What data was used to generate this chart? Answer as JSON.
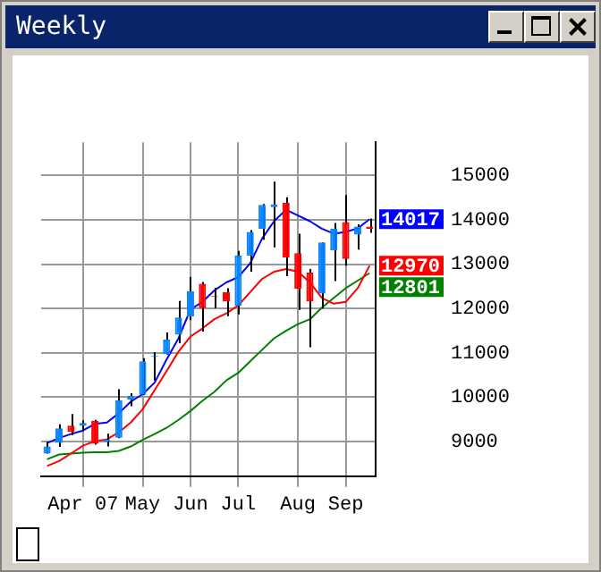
{
  "chart_data": {
    "type": "candlestick",
    "title": "Weekly",
    "categories": [
      null,
      null,
      null,
      "Apr 07",
      null,
      null,
      null,
      null,
      "May",
      null,
      null,
      null,
      "Jun",
      null,
      null,
      null,
      "Jul",
      null,
      null,
      null,
      null,
      "Aug",
      null,
      null,
      null,
      "Sep",
      null,
      null
    ],
    "ohlc": [
      [
        8730,
        8990,
        8730,
        8890
      ],
      [
        8970,
        9390,
        8880,
        9300
      ],
      [
        9360,
        9620,
        9150,
        9220
      ],
      [
        9360,
        9480,
        9240,
        9420
      ],
      [
        9470,
        9490,
        8930,
        8950
      ],
      [
        8990,
        9180,
        8890,
        9040
      ],
      [
        9090,
        10180,
        9080,
        9930
      ],
      [
        9950,
        10090,
        9800,
        10030
      ],
      [
        10060,
        10880,
        10050,
        10810
      ],
      [
        10920,
        11020,
        10380,
        10940
      ],
      [
        10970,
        11460,
        10960,
        11300
      ],
      [
        11410,
        12170,
        11220,
        11800
      ],
      [
        11820,
        12710,
        11740,
        12390
      ],
      [
        12560,
        12600,
        11480,
        12010
      ],
      [
        12280,
        12470,
        12010,
        12260
      ],
      [
        12370,
        12460,
        11830,
        12160
      ],
      [
        12060,
        13300,
        11870,
        13200
      ],
      [
        13190,
        13770,
        12830,
        13730
      ],
      [
        13800,
        14360,
        13550,
        14340
      ],
      [
        14290,
        14860,
        13380,
        14350
      ],
      [
        14390,
        14510,
        12730,
        13150
      ],
      [
        13250,
        13690,
        11970,
        12450
      ],
      [
        12810,
        12890,
        11130,
        12160
      ],
      [
        12340,
        13490,
        12000,
        13490
      ],
      [
        13310,
        13930,
        12620,
        13800
      ],
      [
        13950,
        14560,
        12970,
        13120
      ],
      [
        13670,
        13900,
        13330,
        13850
      ],
      [
        13850,
        14030,
        13710,
        13800
      ]
    ],
    "colors": [
      "#0a84ff",
      "#0a84ff",
      "#ff0000",
      "#0a84ff",
      "#ff0000",
      "#0a84ff",
      "#0a84ff",
      "#0a84ff",
      "#0a84ff",
      "#0a84ff",
      "#0a84ff",
      "#0a84ff",
      "#0a84ff",
      "#ff0000",
      "#ff0000",
      "#ff0000",
      "#0a84ff",
      "#0a84ff",
      "#0a84ff",
      "#0a84ff",
      "#ff0000",
      "#ff0000",
      "#ff0000",
      "#0a84ff",
      "#0a84ff",
      "#ff0000",
      "#0a84ff",
      "#ff0000"
    ],
    "series": [
      {
        "type": "line",
        "color": "#0000ff",
        "values": [
          8970,
          9080,
          9170,
          9250,
          9400,
          9430,
          9640,
          9900,
          10070,
          10330,
          10850,
          11330,
          11980,
          12150,
          12410,
          12590,
          12710,
          13020,
          13580,
          13970,
          14230,
          14100,
          13970,
          13800,
          13690,
          13730,
          13810,
          14017
        ],
        "value_labels": [
          null,
          null,
          null,
          null,
          null,
          null,
          null,
          null,
          null,
          null,
          null,
          null,
          null,
          null,
          null,
          null,
          null,
          null,
          null,
          null,
          null,
          null,
          null,
          null,
          null,
          null,
          null,
          "14017"
        ]
      },
      {
        "type": "line",
        "color": "#ff0000",
        "values": [
          8450,
          8560,
          8730,
          8910,
          9010,
          9050,
          9210,
          9430,
          9730,
          10160,
          10590,
          11030,
          11370,
          11550,
          11760,
          11890,
          12070,
          12370,
          12670,
          12830,
          12890,
          12830,
          12590,
          12240,
          12110,
          12150,
          12460,
          12970
        ],
        "value_labels": [
          null,
          null,
          null,
          null,
          null,
          null,
          null,
          null,
          null,
          null,
          null,
          null,
          null,
          null,
          null,
          null,
          null,
          null,
          null,
          null,
          null,
          null,
          null,
          null,
          null,
          null,
          null,
          "12970"
        ]
      },
      {
        "type": "line",
        "color": "#008000",
        "values": [
          8600,
          8710,
          8730,
          8750,
          8760,
          8760,
          8790,
          8890,
          9040,
          9170,
          9310,
          9490,
          9690,
          9920,
          10120,
          10380,
          10550,
          10810,
          11070,
          11330,
          11500,
          11650,
          11760,
          12020,
          12240,
          12460,
          12630,
          12801
        ],
        "value_labels": [
          null,
          null,
          null,
          null,
          null,
          null,
          null,
          null,
          null,
          null,
          null,
          null,
          null,
          null,
          null,
          null,
          null,
          null,
          null,
          null,
          null,
          null,
          null,
          null,
          null,
          null,
          null,
          "12801"
        ]
      }
    ],
    "ylim": [
      8220,
      15750
    ],
    "yticks": [
      9000,
      10000,
      11000,
      12000,
      13000,
      14000,
      15000
    ],
    "grid": true,
    "legend": false,
    "marker": "none"
  }
}
